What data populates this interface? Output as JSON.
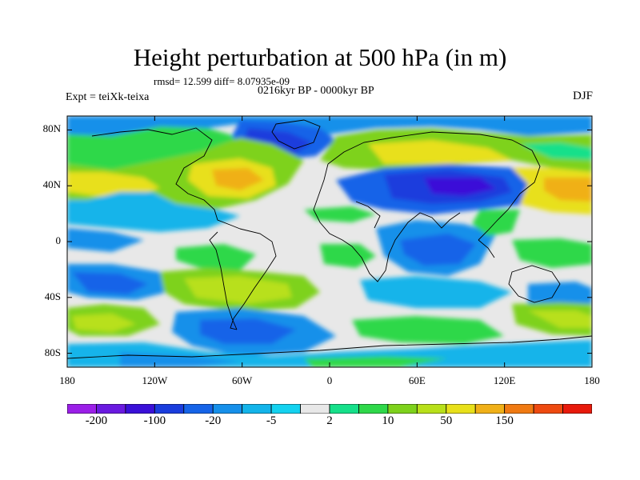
{
  "title": "Height perturbation at 500 hPa (in m)",
  "stats": "rmsd= 12.599 diff= 8.07935e-09",
  "subtitle": "0216kyr BP - 0000kyr BP",
  "experiment": "Expt = teiXk-teixa",
  "season": "DJF",
  "x_ticks": [
    "180",
    "120W",
    "60W",
    "0",
    "60E",
    "120E",
    "180"
  ],
  "y_ticks": [
    "80N",
    "40N",
    "0",
    "40S",
    "80S"
  ],
  "colorbar": {
    "labels": [
      "-200",
      "-100",
      "-20",
      "-5",
      "2",
      "10",
      "50",
      "150"
    ],
    "colors": [
      "#9b1fe8",
      "#6a1ae0",
      "#3a10d8",
      "#1a3ddd",
      "#1664e8",
      "#1690ea",
      "#13b4ea",
      "#14d2f0",
      "#e8e8e8",
      "#16e08a",
      "#2fd84a",
      "#7ed21c",
      "#b8e01a",
      "#e8e01a",
      "#f0b018",
      "#f07a12",
      "#ee4a10",
      "#e81a0c"
    ]
  }
}
